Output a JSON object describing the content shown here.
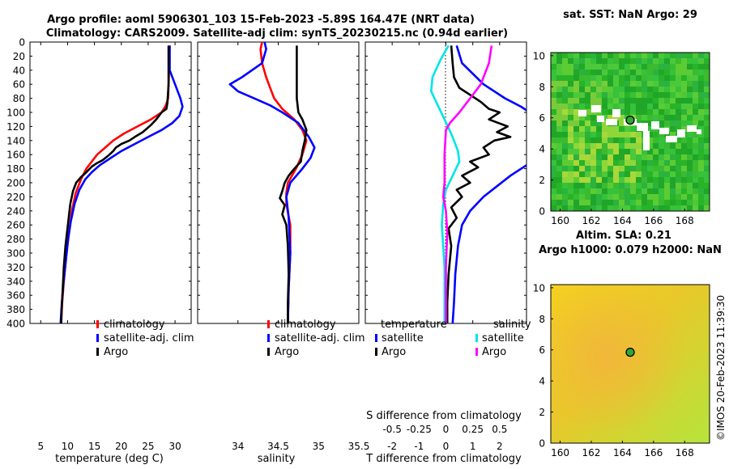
{
  "title": {
    "line1": "Argo profile: aoml 5906301_103 15-Feb-2023 -5.89S 164.47E (NRT data)",
    "line2": "Climatology: CARS2009. Satellite-adj clim: synTS_20230215.nc (0.94d earlier)"
  },
  "watermark": "©IMOS 20-Feb-2023 11:39:30",
  "colors": {
    "climatology": "#ff0000",
    "satellite": "#0000ff",
    "argo": "#000000",
    "t_diff_satellite": "#00e5e5",
    "s_diff_argo": "#ff00ff",
    "sst_map": "#2db82d",
    "sla_map": "#c8e632",
    "argo_marker": "#2ea82e"
  },
  "depth_ticks": [
    "0",
    "20",
    "40",
    "60",
    "80",
    "100",
    "120",
    "140",
    "160",
    "180",
    "200",
    "220",
    "240",
    "260",
    "280",
    "300",
    "320",
    "340",
    "360",
    "380",
    "400"
  ],
  "chart_data": [
    {
      "type": "line",
      "id": "temperature",
      "xlabel": "temperature (deg C)",
      "ylabel": "",
      "xlim": [
        3,
        33
      ],
      "ylim": [
        400,
        0
      ],
      "x_ticks": [
        "5",
        "10",
        "15",
        "20",
        "25",
        "30"
      ],
      "legend": [
        "climatology",
        "satellite-adj. clim",
        "Argo"
      ],
      "series": [
        {
          "name": "climatology",
          "color": "#ff0000",
          "points": [
            [
              29,
              5
            ],
            [
              28.9,
              40
            ],
            [
              28.7,
              80
            ],
            [
              28.3,
              90
            ],
            [
              27.5,
              100
            ],
            [
              25.5,
              110
            ],
            [
              23,
              120
            ],
            [
              20.5,
              130
            ],
            [
              18.5,
              140
            ],
            [
              17,
              150
            ],
            [
              15.5,
              160
            ],
            [
              14.5,
              170
            ],
            [
              13.5,
              180
            ],
            [
              12.5,
              195
            ],
            [
              11.5,
              215
            ],
            [
              10.8,
              240
            ],
            [
              10.3,
              270
            ],
            [
              9.8,
              300
            ],
            [
              9.3,
              340
            ],
            [
              9,
              370
            ],
            [
              8.8,
              400
            ]
          ]
        },
        {
          "name": "satellite-adj. clim",
          "color": "#0000ff",
          "points": [
            [
              29,
              5
            ],
            [
              29,
              40
            ],
            [
              30,
              60
            ],
            [
              31,
              80
            ],
            [
              31.4,
              92
            ],
            [
              30.8,
              105
            ],
            [
              29.5,
              115
            ],
            [
              27.5,
              125
            ],
            [
              25,
              135
            ],
            [
              22.5,
              145
            ],
            [
              20,
              155
            ],
            [
              18,
              165
            ],
            [
              16,
              175
            ],
            [
              14.5,
              185
            ],
            [
              13.3,
              195
            ],
            [
              12.2,
              210
            ],
            [
              11.3,
              230
            ],
            [
              10.6,
              255
            ],
            [
              10.1,
              280
            ],
            [
              9.7,
              310
            ],
            [
              9.2,
              345
            ],
            [
              8.9,
              375
            ],
            [
              8.7,
              400
            ]
          ]
        },
        {
          "name": "Argo",
          "color": "#000000",
          "points": [
            [
              28.8,
              5
            ],
            [
              28.8,
              60
            ],
            [
              28.6,
              85
            ],
            [
              28.4,
              95
            ],
            [
              27.5,
              100
            ],
            [
              26.5,
              110
            ],
            [
              25.5,
              118
            ],
            [
              24,
              128
            ],
            [
              22.5,
              135
            ],
            [
              21.5,
              140
            ],
            [
              20,
              145
            ],
            [
              19,
              150
            ],
            [
              18.5,
              155
            ],
            [
              17.5,
              162
            ],
            [
              16.5,
              168
            ],
            [
              15.5,
              172
            ],
            [
              14.5,
              177
            ],
            [
              13.5,
              185
            ],
            [
              12.5,
              192
            ],
            [
              11.6,
              200
            ],
            [
              11,
              212
            ],
            [
              10.5,
              230
            ],
            [
              10.2,
              250
            ],
            [
              9.9,
              270
            ],
            [
              9.6,
              290
            ],
            [
              9.3,
              320
            ],
            [
              9.1,
              350
            ],
            [
              8.9,
              380
            ],
            [
              8.8,
              400
            ]
          ]
        }
      ]
    },
    {
      "type": "line",
      "id": "salinity",
      "xlabel": "salinity",
      "xlim": [
        33.5,
        35.5
      ],
      "ylim": [
        400,
        0
      ],
      "x_ticks": [
        "34",
        "34.5",
        "35",
        "35.5"
      ],
      "legend": [
        "climatology",
        "satellite-adj. clim",
        "Argo"
      ],
      "series": [
        {
          "name": "climatology",
          "color": "#ff0000",
          "points": [
            [
              34.3,
              0
            ],
            [
              34.28,
              10
            ],
            [
              34.3,
              30
            ],
            [
              34.35,
              50
            ],
            [
              34.4,
              65
            ],
            [
              34.45,
              80
            ],
            [
              34.55,
              95
            ],
            [
              34.7,
              110
            ],
            [
              34.8,
              125
            ],
            [
              34.85,
              140
            ],
            [
              34.8,
              160
            ],
            [
              34.72,
              180
            ],
            [
              34.62,
              200
            ],
            [
              34.6,
              215
            ],
            [
              34.6,
              230
            ],
            [
              34.65,
              260
            ],
            [
              34.65,
              300
            ],
            [
              34.63,
              350
            ],
            [
              34.62,
              400
            ]
          ]
        },
        {
          "name": "satellite-adj. clim",
          "color": "#0000ff",
          "points": [
            [
              34.33,
              0
            ],
            [
              34.35,
              10
            ],
            [
              34.3,
              30
            ],
            [
              34.05,
              50
            ],
            [
              33.9,
              60
            ],
            [
              34.0,
              70
            ],
            [
              34.2,
              80
            ],
            [
              34.4,
              90
            ],
            [
              34.55,
              100
            ],
            [
              34.75,
              115
            ],
            [
              34.88,
              135
            ],
            [
              34.95,
              150
            ],
            [
              34.9,
              165
            ],
            [
              34.8,
              180
            ],
            [
              34.65,
              200
            ],
            [
              34.6,
              220
            ],
            [
              34.63,
              250
            ],
            [
              34.65,
              300
            ],
            [
              34.63,
              350
            ],
            [
              34.62,
              400
            ]
          ]
        },
        {
          "name": "Argo",
          "color": "#000000",
          "points": [
            [
              34.73,
              5
            ],
            [
              34.73,
              40
            ],
            [
              34.73,
              80
            ],
            [
              34.75,
              100
            ],
            [
              34.8,
              110
            ],
            [
              34.85,
              125
            ],
            [
              34.83,
              140
            ],
            [
              34.8,
              155
            ],
            [
              34.78,
              170
            ],
            [
              34.7,
              180
            ],
            [
              34.63,
              190
            ],
            [
              34.58,
              200
            ],
            [
              34.55,
              212
            ],
            [
              34.52,
              222
            ],
            [
              34.58,
              232
            ],
            [
              34.55,
              245
            ],
            [
              34.6,
              260
            ],
            [
              34.62,
              290
            ],
            [
              34.63,
              330
            ],
            [
              34.62,
              370
            ],
            [
              34.62,
              400
            ]
          ]
        }
      ]
    },
    {
      "type": "line",
      "id": "differences",
      "xlabel": "T difference from climatology",
      "xlabel_top": "S difference from climatology",
      "xlim": [
        -3,
        3
      ],
      "ylim": [
        400,
        0
      ],
      "x_ticks": [
        "-2",
        "-1",
        "0",
        "1",
        "2"
      ],
      "x_ticks_top": [
        "-0.5",
        "-0.25",
        "0",
        "0.25",
        "0.5"
      ],
      "legend_left": {
        "title": "temperature",
        "items": [
          "satellite",
          "Argo"
        ]
      },
      "legend_right": {
        "title": "salinity",
        "items": [
          "satellite",
          "Argo"
        ]
      },
      "series": [
        {
          "name": "temperature satellite",
          "color": "#0000ff",
          "points": [
            [
              0.4,
              5
            ],
            [
              0.6,
              30
            ],
            [
              1.4,
              60
            ],
            [
              2.2,
              80
            ],
            [
              2.8,
              92
            ],
            [
              3.0,
              97
            ]
          ]
        },
        {
          "name": "temperature satellite (deep)",
          "color": "#0000ff",
          "points": [
            [
              3.0,
              175
            ],
            [
              2.4,
              190
            ],
            [
              1.9,
              205
            ],
            [
              1.4,
              220
            ],
            [
              0.9,
              240
            ],
            [
              0.6,
              260
            ],
            [
              0.45,
              290
            ],
            [
              0.35,
              330
            ],
            [
              0.3,
              370
            ],
            [
              0.25,
              400
            ]
          ]
        },
        {
          "name": "temperature Argo",
          "color": "#000000",
          "points": [
            [
              0.2,
              5
            ],
            [
              0.25,
              30
            ],
            [
              0.3,
              50
            ],
            [
              0.5,
              65
            ],
            [
              0.9,
              75
            ],
            [
              1.3,
              85
            ],
            [
              1.6,
              95
            ],
            [
              2.0,
              100
            ],
            [
              1.6,
              110
            ],
            [
              2.3,
              120
            ],
            [
              1.9,
              128
            ],
            [
              2.4,
              135
            ],
            [
              1.8,
              140
            ],
            [
              1.4,
              150
            ],
            [
              1.6,
              160
            ],
            [
              0.9,
              170
            ],
            [
              1.2,
              178
            ],
            [
              0.6,
              190
            ],
            [
              0.9,
              200
            ],
            [
              0.4,
              210
            ],
            [
              0.6,
              220
            ],
            [
              0.2,
              235
            ],
            [
              0.4,
              250
            ],
            [
              0.1,
              265
            ],
            [
              0.2,
              290
            ],
            [
              0.1,
              330
            ],
            [
              0.05,
              370
            ],
            [
              0.05,
              400
            ]
          ]
        },
        {
          "name": "salinity satellite",
          "color": "#00e5e5",
          "points": [
            [
              0.1,
              5
            ],
            [
              -0.2,
              25
            ],
            [
              -0.5,
              50
            ],
            [
              -0.55,
              70
            ],
            [
              -0.3,
              90
            ],
            [
              -0.05,
              110
            ],
            [
              0.25,
              135
            ],
            [
              0.45,
              155
            ],
            [
              0.5,
              170
            ],
            [
              0.25,
              190
            ],
            [
              0.0,
              210
            ],
            [
              -0.1,
              230
            ],
            [
              -0.15,
              260
            ],
            [
              -0.1,
              290
            ],
            [
              -0.05,
              320
            ],
            [
              -0.05,
              400
            ]
          ]
        },
        {
          "name": "salinity Argo",
          "color": "#ff00ff",
          "points": [
            [
              1.7,
              5
            ],
            [
              1.6,
              30
            ],
            [
              1.3,
              60
            ],
            [
              0.9,
              80
            ],
            [
              0.5,
              100
            ],
            [
              0.15,
              115
            ],
            [
              0.0,
              125
            ],
            [
              -0.05,
              160
            ],
            [
              -0.05,
              200
            ],
            [
              -0.1,
              220
            ],
            [
              0.0,
              240
            ],
            [
              0.05,
              270
            ],
            [
              0.0,
              320
            ],
            [
              0.0,
              400
            ]
          ]
        }
      ]
    },
    {
      "type": "heatmap",
      "id": "sst",
      "title": "sat. SST: NaN Argo: 29",
      "xlim": [
        159.4,
        169.6
      ],
      "ylim": [
        0,
        10.2
      ],
      "x_ticks": [
        "160",
        "162",
        "164",
        "166",
        "168"
      ],
      "y_ticks": [
        "0",
        "2",
        "4",
        "6",
        "8",
        "10"
      ],
      "argo_position": [
        164.5,
        5.85
      ]
    },
    {
      "type": "heatmap",
      "id": "sla",
      "title_line1": "Altim. SLA: 0.21",
      "title_line2": "Argo h1000: 0.079 h2000: NaN",
      "xlim": [
        159.4,
        169.6
      ],
      "ylim": [
        0,
        10.2
      ],
      "x_ticks": [
        "160",
        "162",
        "164",
        "166",
        "168"
      ],
      "y_ticks": [
        "0",
        "2",
        "4",
        "6",
        "8",
        "10"
      ],
      "argo_position": [
        164.5,
        5.85
      ]
    }
  ]
}
